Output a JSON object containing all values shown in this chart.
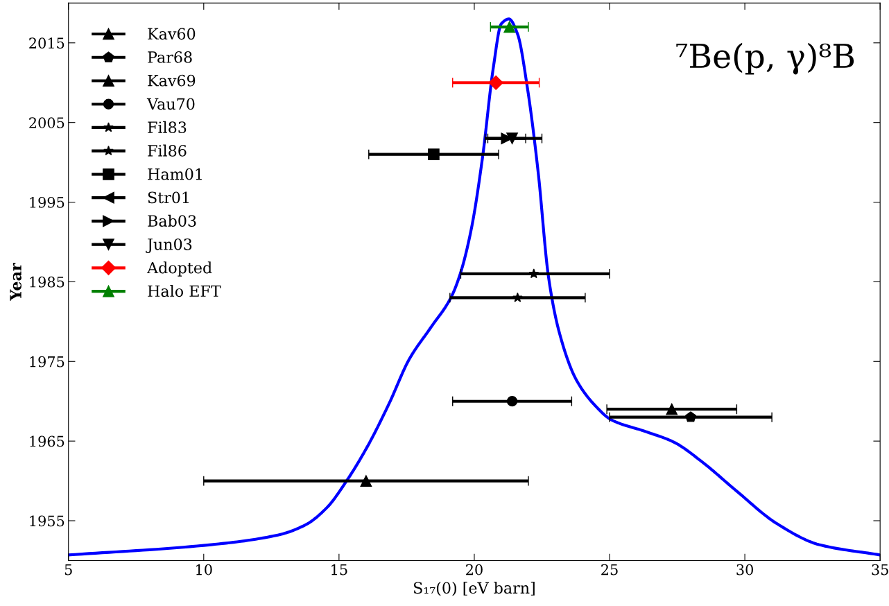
{
  "chart_data": {
    "type": "scatter",
    "xlabel": "S₁₇(0) [eV barn]",
    "ylabel": "Year",
    "annotations": [
      "⁷Be(p, γ)⁸B"
    ],
    "xlim": [
      5,
      35
    ],
    "xticks": [
      5,
      10,
      15,
      20,
      25,
      30,
      35
    ],
    "ylim": [
      1950,
      2020
    ],
    "yticks": [
      1955,
      1965,
      1975,
      1985,
      1995,
      2005,
      2015
    ],
    "legend": "top left",
    "grid": false,
    "series": [
      {
        "type": "line",
        "color": "#0000ff",
        "marker": "none",
        "line_style": "solid",
        "x": [
          5,
          10,
          12.74,
          13.77,
          14.54,
          15.3,
          16.08,
          16.85,
          17.6,
          18.38,
          19.15,
          19.5,
          19.9,
          20.3,
          20.7,
          21.0,
          21.28,
          21.6,
          21.97,
          22.36,
          22.74,
          23.13,
          23.77,
          24.54,
          25.05,
          26.33,
          27.36,
          28.38,
          29.67,
          31.2,
          32.74,
          35
        ],
        "values": [
          1950.7,
          1951.9,
          1953.2,
          1954.5,
          1956.6,
          1960.1,
          1964.5,
          1969.7,
          1975.3,
          1979.2,
          1983.1,
          1986.2,
          1991.8,
          2000.5,
          2011.8,
          2017.4,
          2018.0,
          2016.1,
          2009.2,
          1998.8,
          1985.7,
          1978.8,
          1972.7,
          1969.2,
          1967.7,
          1966.2,
          1964.9,
          1962.5,
          1958.8,
          1954.6,
          1952.0,
          1950.7
        ]
      },
      {
        "name": "Kav60",
        "color": "#000000",
        "marker": "triangle",
        "x": [
          16.0
        ],
        "values": [
          1960
        ],
        "xerrors": [
          [
            10.0,
            22.0
          ]
        ]
      },
      {
        "name": "Par68",
        "color": "#000000",
        "x": [
          28.0
        ],
        "values": [
          1968
        ],
        "xerrors": [
          [
            25.0,
            31.0
          ]
        ]
      },
      {
        "name": "Kav69",
        "color": "#000000",
        "marker": "triangle",
        "x": [
          27.3
        ],
        "values": [
          1969
        ],
        "xerrors": [
          [
            24.9,
            29.7
          ]
        ]
      },
      {
        "name": "Vau70",
        "color": "#000000",
        "marker": "circle",
        "x": [
          21.4
        ],
        "values": [
          1970
        ],
        "xerrors": [
          [
            19.2,
            23.6
          ]
        ]
      },
      {
        "name": "Fil83",
        "color": "#000000",
        "marker": "star",
        "x": [
          21.6
        ],
        "values": [
          1983
        ],
        "xerrors": [
          [
            19.1,
            24.1
          ]
        ]
      },
      {
        "name": "Fil86",
        "color": "#000000",
        "marker": "star",
        "x": [
          22.2
        ],
        "values": [
          1986
        ],
        "xerrors": [
          [
            19.5,
            25.0
          ]
        ]
      },
      {
        "name": "Ham01",
        "color": "#000000",
        "marker": "square",
        "x": [
          18.5
        ],
        "values": [
          2001
        ],
        "xerrors": [
          [
            16.1,
            20.9
          ]
        ]
      },
      {
        "name": "Str01",
        "color": "#000000",
        "marker": "triangle_left",
        "x": [
          null
        ],
        "values": [
          null
        ]
      },
      {
        "name": "Bab03",
        "color": "#000000",
        "marker": "triangle_right",
        "x": [
          21.2
        ],
        "values": [
          2003
        ],
        "xerrors": [
          [
            20.5,
            21.9
          ]
        ]
      },
      {
        "name": "Jun03",
        "color": "#000000",
        "marker": "triangle_down",
        "x": [
          21.4
        ],
        "values": [
          2003
        ],
        "xerrors": [
          [
            20.4,
            22.5
          ]
        ]
      },
      {
        "name": "Adopted",
        "color": "#ff0000",
        "marker": "diamond",
        "x": [
          20.8
        ],
        "values": [
          2010
        ],
        "xerrors": [
          [
            19.2,
            22.4
          ]
        ]
      },
      {
        "name": "Halo EFT",
        "color": "#008000",
        "marker": "triangle",
        "x": [
          21.3
        ],
        "values": [
          2017
        ],
        "xerrors": [
          [
            20.6,
            22.0
          ]
        ]
      }
    ]
  }
}
